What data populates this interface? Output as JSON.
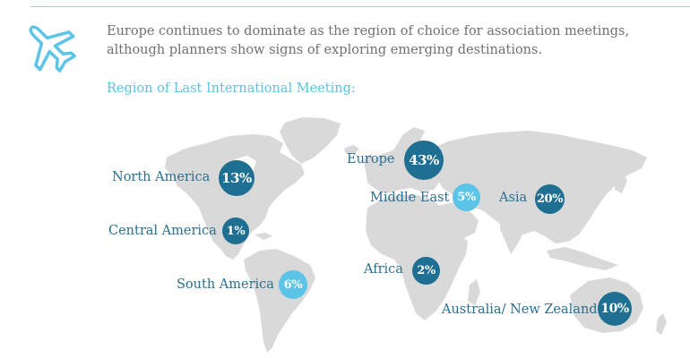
{
  "intro": {
    "line1": "Europe continues to dominate as the region of choice for association meetings,",
    "line2": "although planners show signs of exploring emerging destinations."
  },
  "subtitle": "Region of Last International Meeting:",
  "icons": {
    "plane": "airplane-icon"
  },
  "colors": {
    "dark_badge": "#1e6f91",
    "light_badge": "#5cc4e6",
    "label_text": "#2a6f90",
    "intro_text": "#707070",
    "map_land": "#d9d9d9"
  },
  "regions": [
    {
      "id": "north-america",
      "label": "North America",
      "value": "13%",
      "tone": "dark"
    },
    {
      "id": "central-america",
      "label": "Central America",
      "value": "1%",
      "tone": "dark"
    },
    {
      "id": "south-america",
      "label": "South America",
      "value": "6%",
      "tone": "light"
    },
    {
      "id": "europe",
      "label": "Europe",
      "value": "43%",
      "tone": "dark"
    },
    {
      "id": "middle-east",
      "label": "Middle East",
      "value": "5%",
      "tone": "light"
    },
    {
      "id": "asia",
      "label": "Asia",
      "value": "20%",
      "tone": "dark"
    },
    {
      "id": "africa",
      "label": "Africa",
      "value": "2%",
      "tone": "dark"
    },
    {
      "id": "australia-nz",
      "label": "Australia/ New Zealand",
      "value": "10%",
      "tone": "dark"
    }
  ]
}
